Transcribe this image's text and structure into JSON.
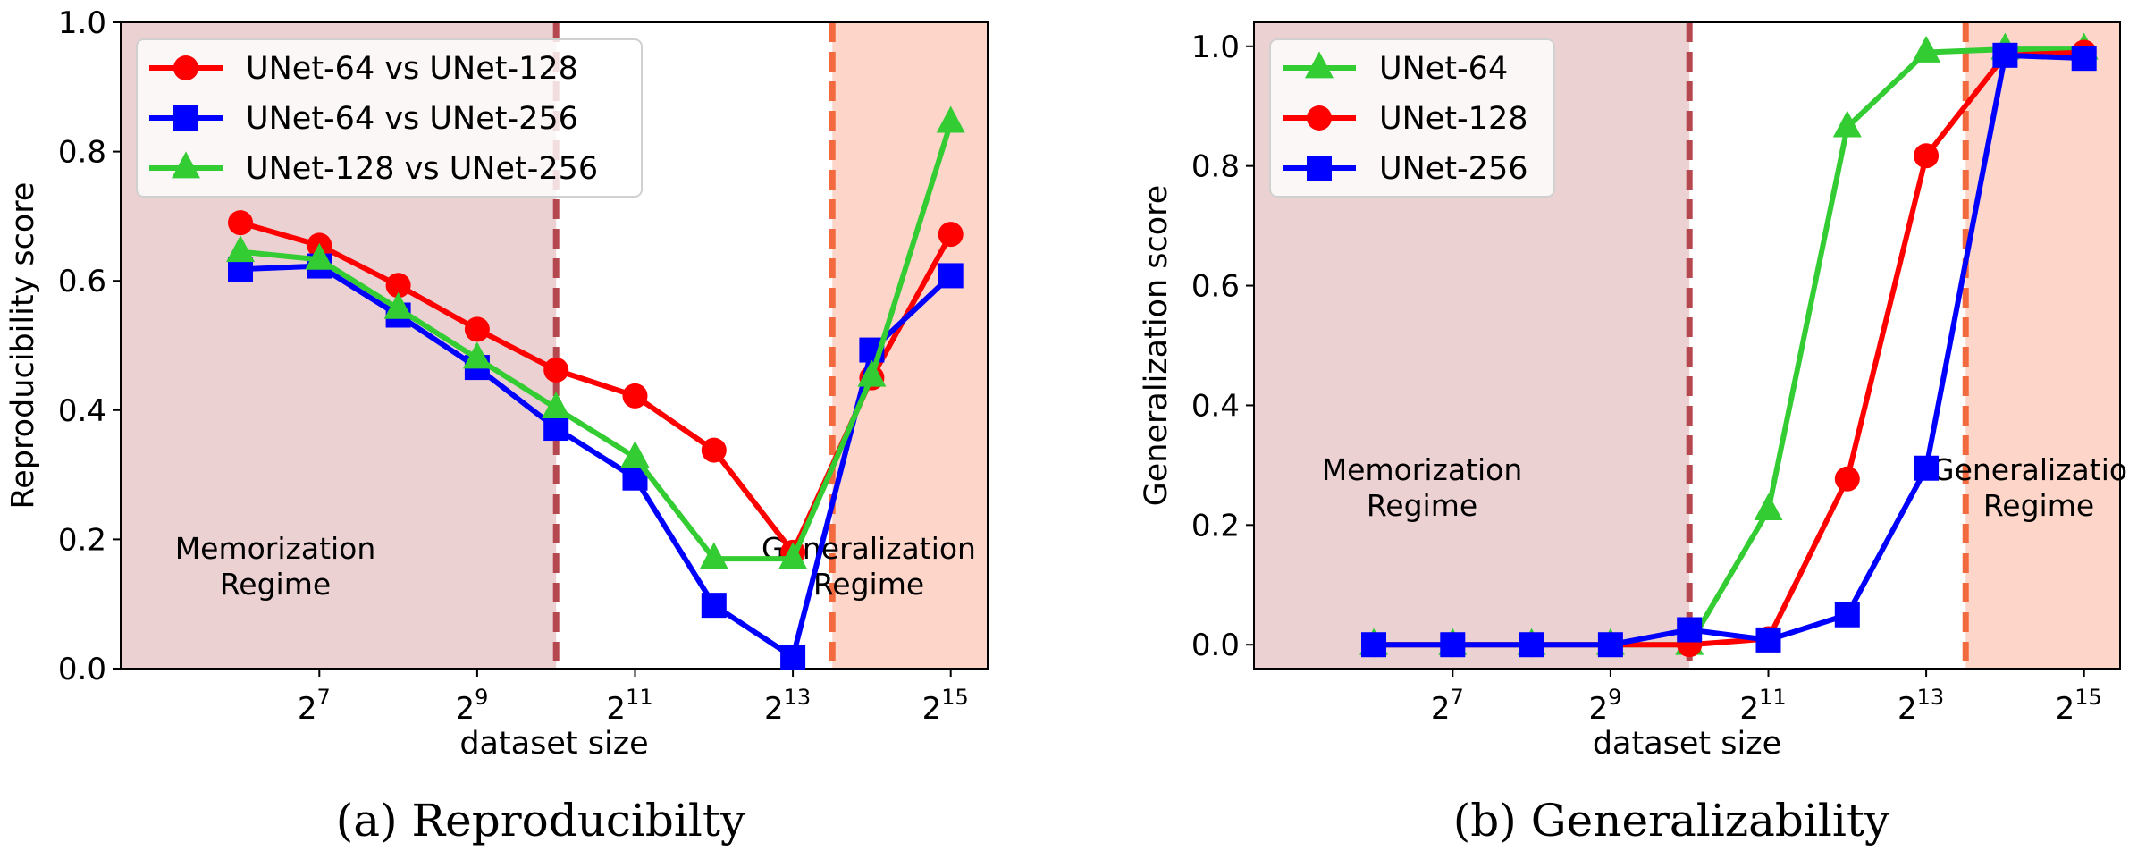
{
  "chart_data": [
    {
      "type": "line",
      "caption": "(a) Reproducibilty",
      "xlabel": "dataset size",
      "ylabel": "Reproducibility score",
      "x_scale": "log2",
      "x": [
        64,
        128,
        256,
        512,
        1024,
        2048,
        4096,
        8192,
        16384,
        32768
      ],
      "x_ticks": [
        {
          "value": 128,
          "base": "2",
          "exp": "7"
        },
        {
          "value": 512,
          "base": "2",
          "exp": "9"
        },
        {
          "value": 2048,
          "base": "2",
          "exp": "11"
        },
        {
          "value": 8192,
          "base": "2",
          "exp": "13"
        },
        {
          "value": 32768,
          "base": "2",
          "exp": "15"
        }
      ],
      "ylim": [
        0.0,
        1.0
      ],
      "y_ticks": [
        "0.0",
        "0.2",
        "0.4",
        "0.6",
        "0.8",
        "1.0"
      ],
      "legend_position": "top-left",
      "series": [
        {
          "name": "UNet-64 vs UNet-128",
          "color": "#ff0000",
          "marker": "circle",
          "values": [
            0.69,
            0.655,
            0.593,
            0.525,
            0.462,
            0.422,
            0.338,
            0.18,
            0.45,
            0.672
          ]
        },
        {
          "name": "UNet-64 vs UNet-256",
          "color": "#0000ff",
          "marker": "square",
          "values": [
            0.618,
            0.623,
            0.547,
            0.466,
            0.372,
            0.295,
            0.098,
            0.018,
            0.493,
            0.608
          ]
        },
        {
          "name": "UNet-128 vs UNet-256",
          "color": "#33cc33",
          "marker": "triangle",
          "values": [
            0.645,
            0.633,
            0.557,
            0.48,
            0.403,
            0.327,
            0.17,
            0.17,
            0.452,
            0.845
          ]
        }
      ],
      "regions": [
        {
          "label_line1": "Memorization",
          "label_line2": "Regime",
          "from": "left-edge",
          "to_x": 1024,
          "fill": "#d9a3a8",
          "line_color": "#b5474e"
        },
        {
          "label_line1": "Generalization",
          "label_line2": "Regime",
          "from_x": 11585,
          "to": "right-edge",
          "fill": "#fbb59c",
          "line_color": "#f26a3d"
        }
      ]
    },
    {
      "type": "line",
      "caption": "(b) Generalizability",
      "xlabel": "dataset size",
      "ylabel": "Generalization score",
      "x_scale": "log2",
      "x": [
        64,
        128,
        256,
        512,
        1024,
        2048,
        4096,
        8192,
        16384,
        32768
      ],
      "x_ticks": [
        {
          "value": 128,
          "base": "2",
          "exp": "7"
        },
        {
          "value": 512,
          "base": "2",
          "exp": "9"
        },
        {
          "value": 2048,
          "base": "2",
          "exp": "11"
        },
        {
          "value": 8192,
          "base": "2",
          "exp": "13"
        },
        {
          "value": 32768,
          "base": "2",
          "exp": "15"
        }
      ],
      "ylim": [
        -0.04,
        1.04
      ],
      "y_ticks": [
        "0.0",
        "0.2",
        "0.4",
        "0.6",
        "0.8",
        "1.0"
      ],
      "legend_position": "top-left",
      "series": [
        {
          "name": "UNet-64",
          "color": "#33cc33",
          "marker": "triangle",
          "values": [
            0.0,
            0.0,
            0.0,
            0.0,
            0.0,
            0.225,
            0.865,
            0.99,
            0.995,
            0.995
          ]
        },
        {
          "name": "UNet-128",
          "color": "#ff0000",
          "marker": "circle",
          "values": [
            0.0,
            0.0,
            0.0,
            0.0,
            0.0,
            0.01,
            0.277,
            0.817,
            0.985,
            0.99
          ]
        },
        {
          "name": "UNet-256",
          "color": "#0000ff",
          "marker": "square",
          "values": [
            0.0,
            0.0,
            0.0,
            0.0,
            0.025,
            0.008,
            0.05,
            0.295,
            0.985,
            0.98
          ]
        }
      ],
      "regions": [
        {
          "label_line1": "Memorization",
          "label_line2": "Regime",
          "from": "left-edge",
          "to_x": 1024,
          "fill": "#d9a3a8",
          "line_color": "#b5474e"
        },
        {
          "label_line1": "Generalization",
          "label_line2": "Regime",
          "from_x": 11585,
          "to": "right-edge",
          "fill": "#fbb59c",
          "line_color": "#f26a3d"
        }
      ]
    }
  ]
}
